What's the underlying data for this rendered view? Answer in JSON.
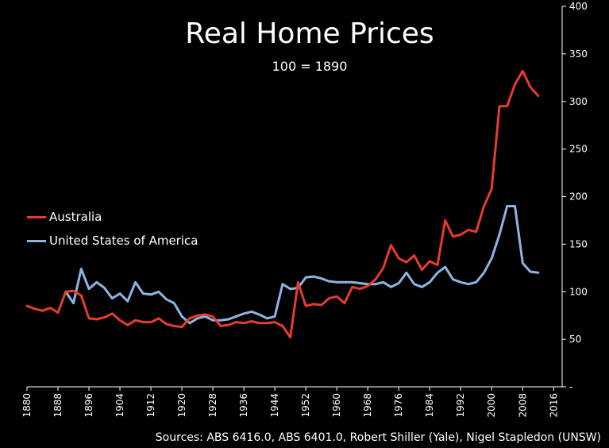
{
  "chart_data": {
    "type": "line",
    "title": "Real Home Prices",
    "subtitle": "100 = 1890",
    "xlabel": "",
    "ylabel": "",
    "xlim": [
      1880,
      2020
    ],
    "ylim": [
      0,
      400
    ],
    "x_ticks": [
      1880,
      1888,
      1896,
      1904,
      1912,
      1920,
      1928,
      1936,
      1944,
      1952,
      1960,
      1968,
      1976,
      1984,
      1992,
      2000,
      2008,
      2016
    ],
    "y_ticks": [
      0,
      50,
      100,
      150,
      200,
      250,
      300,
      350,
      400
    ],
    "y_tick_labels": [
      "-",
      "50",
      "100",
      "150",
      "200",
      "250",
      "300",
      "350",
      "400"
    ],
    "y_axis_side": "right",
    "legend_position": "middle-left",
    "series": [
      {
        "name": "Australia",
        "color": "#e83b2e",
        "x": [
          1880,
          1882,
          1884,
          1886,
          1888,
          1890,
          1892,
          1894,
          1896,
          1898,
          1900,
          1902,
          1904,
          1906,
          1908,
          1910,
          1912,
          1914,
          1916,
          1918,
          1920,
          1922,
          1924,
          1926,
          1928,
          1930,
          1932,
          1934,
          1936,
          1938,
          1940,
          1942,
          1944,
          1946,
          1948,
          1950,
          1952,
          1954,
          1956,
          1958,
          1960,
          1962,
          1964,
          1966,
          1968,
          1970,
          1972,
          1974,
          1976,
          1978,
          1980,
          1982,
          1984,
          1986,
          1988,
          1990,
          1992,
          1994,
          1996,
          1998,
          2000,
          2002,
          2004,
          2006,
          2008,
          2010,
          2012
        ],
        "values": [
          85,
          82,
          80,
          83,
          78,
          100,
          101,
          96,
          72,
          71,
          73,
          77,
          70,
          65,
          70,
          68,
          68,
          72,
          66,
          64,
          63,
          72,
          75,
          76,
          74,
          64,
          65,
          68,
          67,
          69,
          67,
          67,
          68,
          64,
          52,
          110,
          85,
          87,
          86,
          93,
          95,
          88,
          105,
          103,
          106,
          113,
          125,
          149,
          135,
          131,
          138,
          123,
          132,
          128,
          175,
          158,
          160,
          165,
          163,
          190,
          208,
          295,
          295,
          318,
          332,
          315,
          306
        ]
      },
      {
        "name": "United States of America",
        "color": "#8fb4e2",
        "x": [
          1880,
          1882,
          1884,
          1886,
          1888,
          1890,
          1892,
          1894,
          1896,
          1898,
          1900,
          1902,
          1904,
          1906,
          1908,
          1910,
          1912,
          1914,
          1916,
          1918,
          1920,
          1922,
          1924,
          1926,
          1928,
          1930,
          1932,
          1934,
          1936,
          1938,
          1940,
          1942,
          1944,
          1946,
          1948,
          1950,
          1952,
          1954,
          1956,
          1958,
          1960,
          1962,
          1964,
          1966,
          1968,
          1970,
          1972,
          1974,
          1976,
          1978,
          1980,
          1982,
          1984,
          1986,
          1988,
          1990,
          1992,
          1994,
          1996,
          1998,
          2000,
          2002,
          2004,
          2006,
          2008,
          2010,
          2012
        ],
        "values": [
          null,
          null,
          null,
          null,
          null,
          100,
          88,
          124,
          103,
          110,
          104,
          93,
          98,
          90,
          110,
          98,
          97,
          100,
          92,
          88,
          74,
          67,
          72,
          74,
          70,
          70,
          71,
          74,
          77,
          79,
          76,
          72,
          74,
          108,
          103,
          104,
          115,
          116,
          114,
          111,
          110,
          110,
          110,
          109,
          108,
          108,
          110,
          105,
          109,
          120,
          108,
          105,
          110,
          120,
          126,
          113,
          110,
          108,
          110,
          120,
          135,
          160,
          190,
          190,
          130,
          121,
          120
        ]
      }
    ],
    "source": "Sources:  ABS 6416.0, ABS 6401.0, Robert Shiller (Yale), Nigel Stapledon (UNSW)"
  }
}
